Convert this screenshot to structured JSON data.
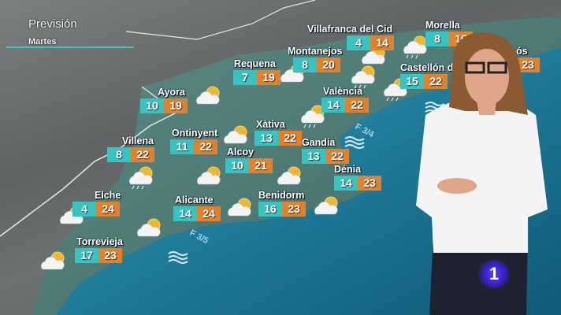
{
  "header": {
    "title": "Previsión",
    "day": "Martes"
  },
  "cities": [
    {
      "name": "Villafranca del Cid",
      "min": "4",
      "max": "14"
    },
    {
      "name": "Morella",
      "min": "8",
      "max": "16"
    },
    {
      "name": "Montanejos",
      "min": "8",
      "max": "20"
    },
    {
      "name": "Requena",
      "min": "7",
      "max": "19"
    },
    {
      "name": "Castellón de",
      "min": "15",
      "max": "22"
    },
    {
      "name": "ós",
      "min": "",
      "max": "23"
    },
    {
      "name": "Ayora",
      "min": "10",
      "max": "19"
    },
    {
      "name": "València",
      "min": "14",
      "max": "22"
    },
    {
      "name": "Xàtiva",
      "min": "13",
      "max": "22"
    },
    {
      "name": "Ontinyent",
      "min": "11",
      "max": "22"
    },
    {
      "name": "Villena",
      "min": "8",
      "max": "22"
    },
    {
      "name": "Gandia",
      "min": "13",
      "max": "22"
    },
    {
      "name": "Alcoy",
      "min": "10",
      "max": "21"
    },
    {
      "name": "Dénia",
      "min": "14",
      "max": "23"
    },
    {
      "name": "Elche",
      "min": "4",
      "max": "24"
    },
    {
      "name": "Alicante",
      "min": "14",
      "max": "24"
    },
    {
      "name": "Benidorm",
      "min": "16",
      "max": "23"
    },
    {
      "name": "Torrevieja",
      "min": "17",
      "max": "23"
    }
  ],
  "sea": {
    "north_label": "F 3/4",
    "south_label": "F 3/5"
  },
  "icons": [
    "partly-cloudy-icon",
    "partly-cloudy-rain-icon",
    "wave-icon"
  ],
  "logo": {
    "text": "1"
  },
  "colors": {
    "min_temp": "#35c4c2",
    "max_temp": "#e2812a",
    "sea": "#1f7fa0",
    "land": "#6a6e6e"
  }
}
